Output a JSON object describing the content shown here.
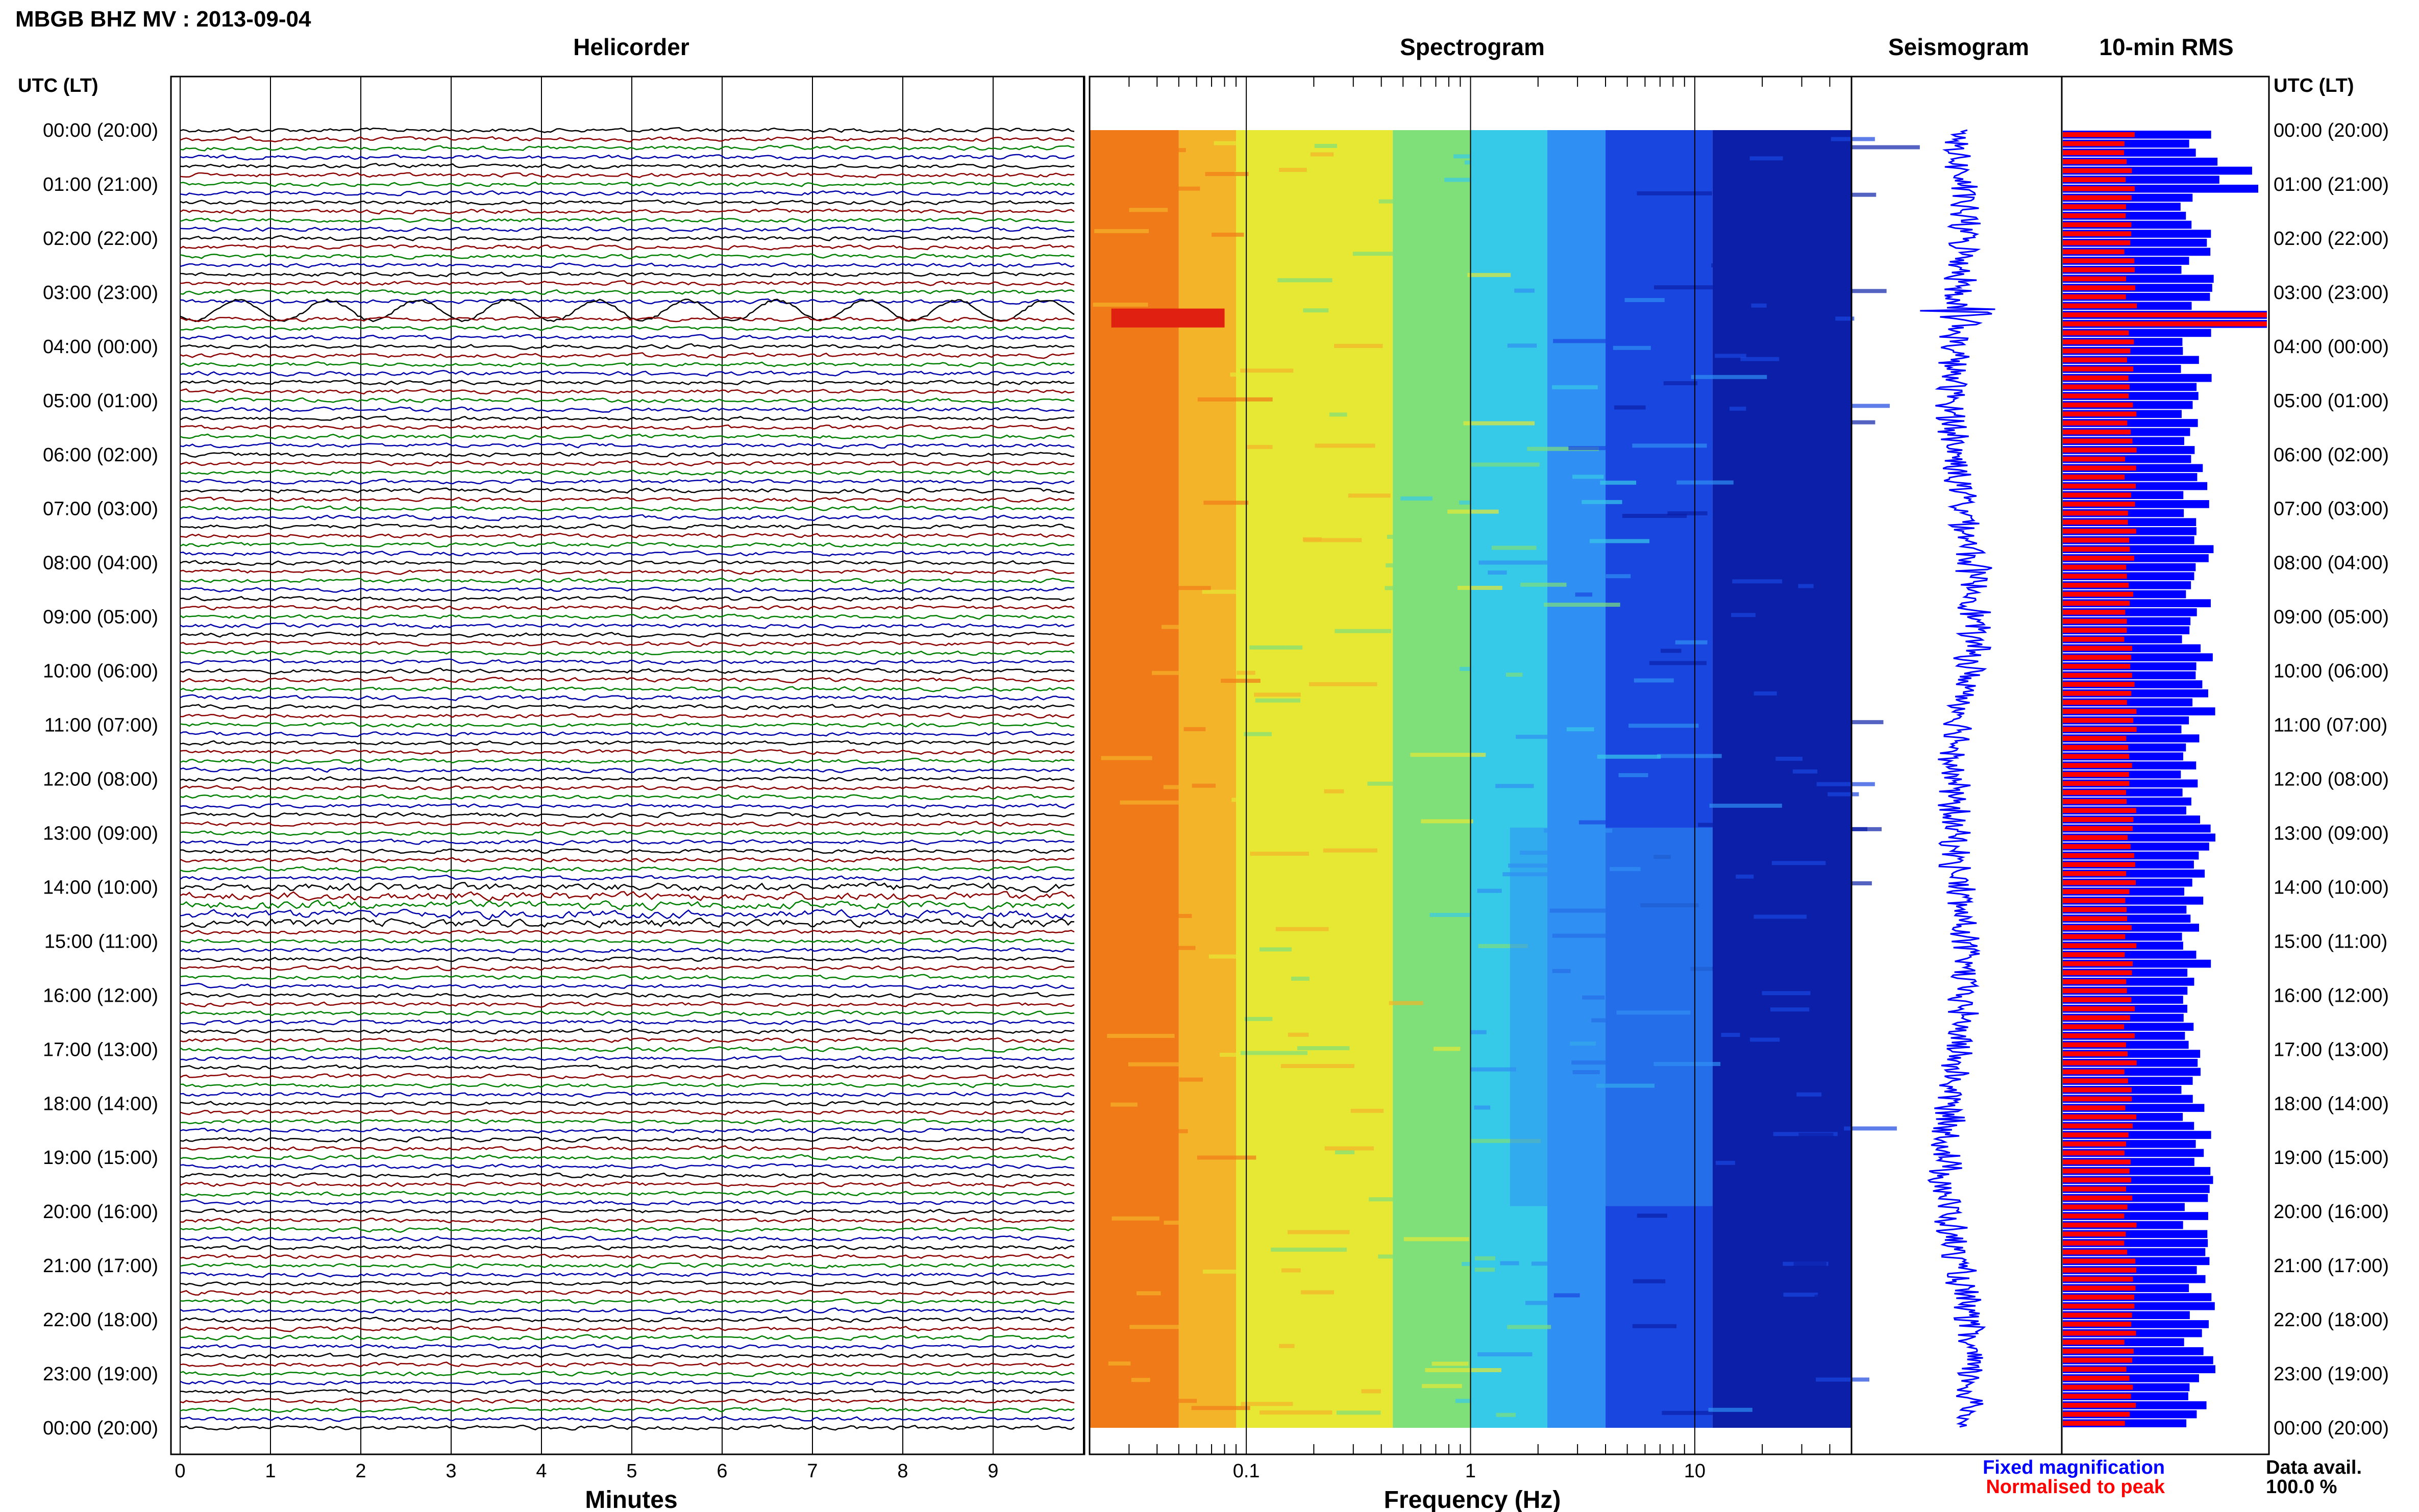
{
  "title": "MBGB BHZ MV : 2013-09-04",
  "panels": {
    "helicorder": "Helicorder",
    "spectrogram": "Spectrogram",
    "seismogram": "Seismogram",
    "rms": "10-min RMS"
  },
  "utc_label": "UTC (LT)",
  "time_labels": [
    "00:00 (20:00)",
    "01:00 (21:00)",
    "02:00 (22:00)",
    "03:00 (23:00)",
    "04:00 (00:00)",
    "05:00 (01:00)",
    "06:00 (02:00)",
    "07:00 (03:00)",
    "08:00 (04:00)",
    "09:00 (05:00)",
    "10:00 (06:00)",
    "11:00 (07:00)",
    "12:00 (08:00)",
    "13:00 (09:00)",
    "14:00 (10:00)",
    "15:00 (11:00)",
    "16:00 (12:00)",
    "17:00 (13:00)",
    "18:00 (14:00)",
    "19:00 (15:00)",
    "20:00 (16:00)",
    "21:00 (17:00)",
    "22:00 (18:00)",
    "23:00 (19:00)",
    "00:00 (20:00)"
  ],
  "x_axes": {
    "minutes_label": "Minutes",
    "minutes_ticks": [
      "0",
      "1",
      "2",
      "3",
      "4",
      "5",
      "6",
      "7",
      "8",
      "9"
    ],
    "frequency_label": "Frequency (Hz)",
    "frequency_ticks": [
      "0.1",
      "1",
      "10"
    ]
  },
  "legend": {
    "fixed": "Fixed magnification",
    "normalised": "Normalised to peak",
    "fixed_color": "#0000ff",
    "normalised_color": "#ff0000"
  },
  "data_avail": {
    "label": "Data avail.",
    "value": "100.0 %"
  },
  "colors": {
    "helicorder_traces": [
      "#000000",
      "#8b0000",
      "#008000",
      "#0000aa"
    ],
    "spectrogram_scale": [
      "#0b1fa8",
      "#1a46e0",
      "#2f8ff2",
      "#37c9e8",
      "#7fe07a",
      "#e6e834",
      "#f4b42a",
      "#f07a18"
    ],
    "seismogram": "#0000ff"
  },
  "chart_data": [
    {
      "type": "line",
      "title": "Helicorder",
      "xlabel": "Minutes",
      "xlim": [
        0,
        10
      ],
      "ylabel": "UTC (LT)",
      "rows_per_hour": 6,
      "hours": 24,
      "events": [
        {
          "time": "03:20",
          "note": "large long-period oscillations"
        },
        {
          "time": "14:00-14:20",
          "note": "high-amplitude traces"
        }
      ]
    },
    {
      "type": "heatmap",
      "title": "Spectrogram",
      "xlabel": "Frequency (Hz)",
      "x_scale": "log",
      "xlim": [
        0.02,
        50
      ],
      "ylim": [
        "00:00",
        "24:00"
      ]
    },
    {
      "type": "line",
      "title": "Seismogram",
      "ylim": [
        "00:00",
        "24:00"
      ]
    },
    {
      "type": "bar",
      "title": "10-min RMS",
      "orientation": "horizontal",
      "series": [
        {
          "name": "Fixed magnification",
          "color": "#0000ff"
        },
        {
          "name": "Normalised to peak",
          "color": "#ff0000"
        }
      ],
      "peak_time": "03:30"
    }
  ]
}
